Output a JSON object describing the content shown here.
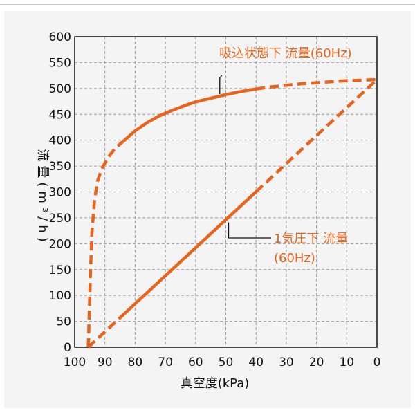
{
  "chart_data": {
    "type": "line",
    "xlabel": "真空度(kPa)",
    "ylabel": "流量(m³/h)",
    "xlim": [
      100,
      0
    ],
    "ylim": [
      0,
      600
    ],
    "x_ticks": [
      "100",
      "90",
      "80",
      "70",
      "60",
      "50",
      "40",
      "30",
      "20",
      "10",
      "0"
    ],
    "y_ticks": [
      "0",
      "50",
      "100",
      "150",
      "200",
      "250",
      "300",
      "350",
      "400",
      "450",
      "500",
      "550",
      "600"
    ],
    "x_tick_values": [
      100,
      90,
      80,
      70,
      60,
      50,
      40,
      30,
      20,
      10,
      0
    ],
    "y_tick_values": [
      0,
      50,
      100,
      150,
      200,
      250,
      300,
      350,
      400,
      450,
      500,
      550,
      600
    ],
    "grid": true,
    "line_color": "#e8641c",
    "series": [
      {
        "name": "吸込状態下 流量(60Hz)",
        "label": "吸込状態下 流量(60Hz)",
        "points": [
          [
            95.5,
            0
          ],
          [
            95.2,
            60
          ],
          [
            94.8,
            140
          ],
          [
            94.3,
            220
          ],
          [
            93.5,
            280
          ],
          [
            92.5,
            320
          ],
          [
            91,
            345
          ],
          [
            88.8,
            368
          ],
          [
            86.5,
            385
          ],
          [
            83.5,
            400
          ],
          [
            80,
            418
          ],
          [
            76,
            434
          ],
          [
            72,
            447
          ],
          [
            68,
            457
          ],
          [
            64,
            466
          ],
          [
            60,
            474
          ],
          [
            55,
            481
          ],
          [
            50,
            488
          ],
          [
            45,
            494
          ],
          [
            40,
            499
          ],
          [
            35,
            503
          ],
          [
            30,
            506
          ],
          [
            25,
            509
          ],
          [
            20,
            511
          ],
          [
            15,
            513
          ],
          [
            10,
            515
          ],
          [
            5,
            516
          ],
          [
            0,
            517
          ]
        ],
        "solid_range": [
          83.5,
          40
        ]
      },
      {
        "name": "1気圧下 流量(60Hz)",
        "label": "1気圧下 流量",
        "label_line2": "(60Hz)",
        "points": [
          [
            95.5,
            0
          ],
          [
            0,
            517
          ]
        ],
        "solid_range": [
          83.5,
          40
        ]
      }
    ]
  }
}
